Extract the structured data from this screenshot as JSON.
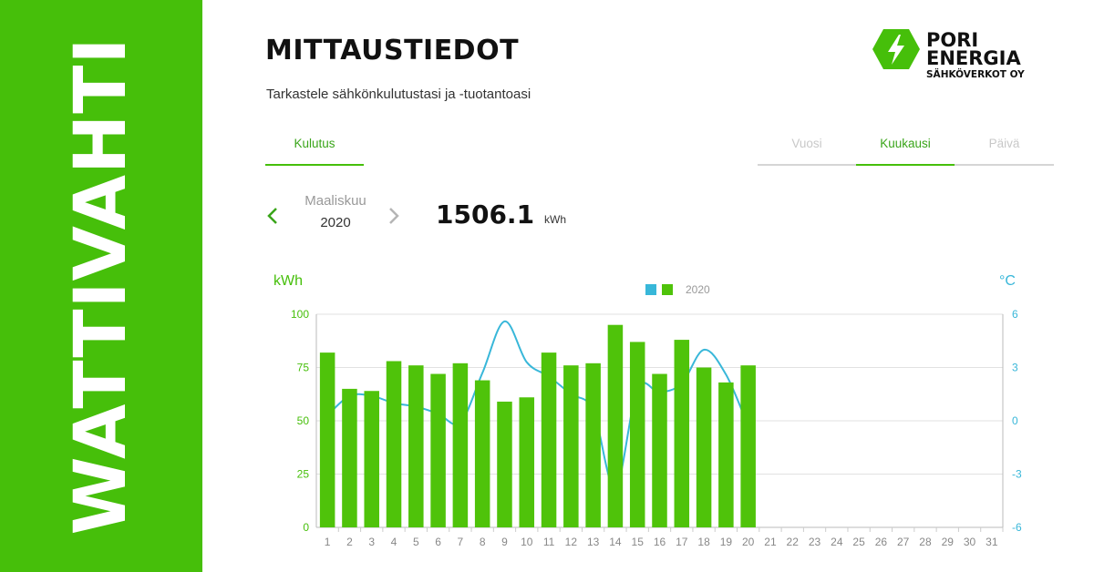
{
  "banner": {
    "text": "WATTIVAHTI"
  },
  "header": {
    "title": "MITTAUSTIEDOT",
    "subtitle": "Tarkastele sähkönkulutustasi ja -tuotantoasi"
  },
  "logo": {
    "line1": "PORI",
    "line2": "ENERGIA",
    "line3": "SÄHKÖVERKOT OY",
    "icon": "lightning-hex-icon"
  },
  "tabs": {
    "consumption": "Kulutus"
  },
  "period_tabs": [
    {
      "label": "Vuosi",
      "active": false
    },
    {
      "label": "Kuukausi",
      "active": true
    },
    {
      "label": "Päivä",
      "active": false
    }
  ],
  "period": {
    "month": "Maaliskuu",
    "year": "2020"
  },
  "total": {
    "value": "1506.1",
    "unit": "kWh"
  },
  "colors": {
    "brand_green": "#46bf0a",
    "bar_green": "#4fc30a",
    "temp_blue": "#38b7d9",
    "grid": "#e2e2e2"
  },
  "chart_data": {
    "type": "bar",
    "left_unit": "kWh",
    "right_unit": "°C",
    "legend": "2020",
    "categories": [
      "1",
      "2",
      "3",
      "4",
      "5",
      "6",
      "7",
      "8",
      "9",
      "10",
      "11",
      "12",
      "13",
      "14",
      "15",
      "16",
      "17",
      "18",
      "19",
      "20",
      "21",
      "22",
      "23",
      "24",
      "25",
      "26",
      "27",
      "28",
      "29",
      "30",
      "31"
    ],
    "y_left": {
      "min": 0,
      "max": 100,
      "ticks": [
        0,
        25,
        50,
        75,
        100
      ]
    },
    "y_right": {
      "min": -6,
      "max": 6,
      "ticks": [
        -6,
        -3,
        0,
        3,
        6
      ]
    },
    "series": [
      {
        "kind": "bar",
        "axis": "left",
        "values": [
          82,
          65,
          64,
          78,
          76,
          72,
          77,
          69,
          59,
          61,
          82,
          76,
          77,
          95,
          87,
          72,
          88,
          75,
          68,
          76,
          null,
          null,
          null,
          null,
          null,
          null,
          null,
          null,
          null,
          null,
          null
        ]
      },
      {
        "kind": "line",
        "axis": "right",
        "values": [
          0.3,
          1.4,
          1.4,
          1.0,
          0.8,
          0.4,
          -0.1,
          2.7,
          5.6,
          3.3,
          2.5,
          1.5,
          0.6,
          -3.8,
          1.8,
          1.6,
          2.1,
          4.0,
          2.6,
          -0.3,
          null,
          null,
          null,
          null,
          null,
          null,
          null,
          null,
          null,
          null,
          null
        ]
      }
    ],
    "grid": true
  }
}
